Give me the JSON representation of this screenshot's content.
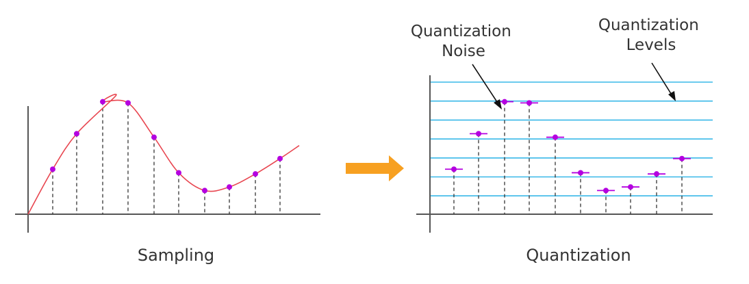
{
  "colors": {
    "axis": "#555555",
    "curve": "#e8454f",
    "sample_point": "#b400e0",
    "stem": "#333333",
    "quant_level": "#38b8e8",
    "quant_mark": "#b400e0",
    "arrow": "#f7a021",
    "annotation_arrow": "#111111"
  },
  "sampling_panel": {
    "caption": "Sampling",
    "sample_values": [
      0.38,
      0.68,
      0.95,
      0.94,
      0.65,
      0.35,
      0.2,
      0.23,
      0.34,
      0.47
    ]
  },
  "transition_arrow": {
    "icon": "right-arrow-icon"
  },
  "quantization_panel": {
    "caption": "Quantization",
    "noise_label": [
      "Quantization",
      "Noise"
    ],
    "levels_label": [
      "Quantization",
      "Levels"
    ],
    "level_count": 7,
    "sample_values": [
      0.38,
      0.68,
      0.95,
      0.94,
      0.65,
      0.35,
      0.2,
      0.23,
      0.34,
      0.47
    ]
  }
}
